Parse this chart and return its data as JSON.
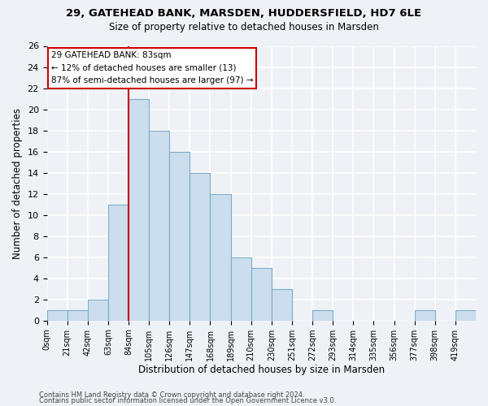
{
  "title1": "29, GATEHEAD BANK, MARSDEN, HUDDERSFIELD, HD7 6LE",
  "title2": "Size of property relative to detached houses in Marsden",
  "xlabel": "Distribution of detached houses by size in Marsden",
  "ylabel": "Number of detached properties",
  "bar_labels": [
    "0sqm",
    "21sqm",
    "42sqm",
    "63sqm",
    "84sqm",
    "105sqm",
    "126sqm",
    "147sqm",
    "168sqm",
    "189sqm",
    "210sqm",
    "230sqm",
    "251sqm",
    "272sqm",
    "293sqm",
    "314sqm",
    "335sqm",
    "356sqm",
    "377sqm",
    "398sqm",
    "419sqm"
  ],
  "bar_values": [
    1,
    1,
    2,
    11,
    21,
    18,
    16,
    14,
    12,
    6,
    5,
    3,
    0,
    1,
    0,
    0,
    0,
    0,
    1,
    0,
    1
  ],
  "bar_color": "#ccdded",
  "bar_edge_color": "#7baec8",
  "annotation_line_color": "#cc0000",
  "annotation_box_text": "29 GATEHEAD BANK: 83sqm\n← 12% of detached houses are smaller (13)\n87% of semi-detached houses are larger (97) →",
  "ylim": [
    0,
    26
  ],
  "yticks": [
    0,
    2,
    4,
    6,
    8,
    10,
    12,
    14,
    16,
    18,
    20,
    22,
    24,
    26
  ],
  "footnote1": "Contains HM Land Registry data © Crown copyright and database right 2024.",
  "footnote2": "Contains public sector information licensed under the Open Government Licence v3.0.",
  "bg_color": "#eef2f7",
  "grid_color": "#ffffff"
}
